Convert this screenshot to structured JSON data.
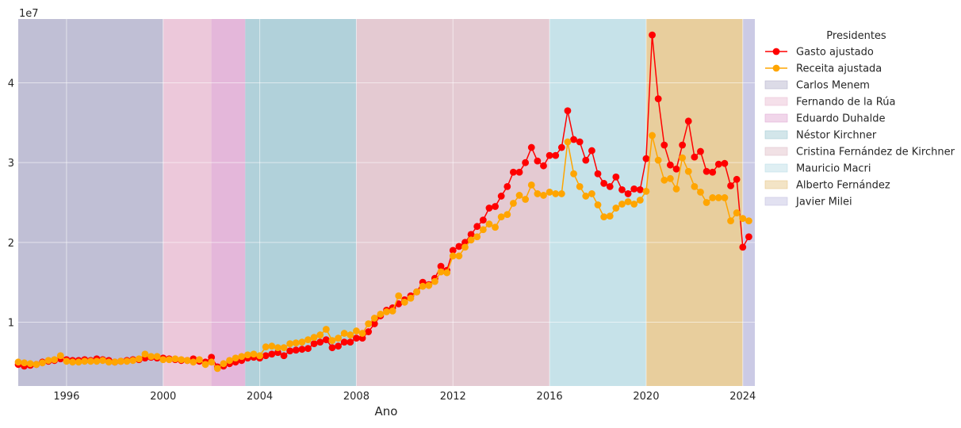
{
  "chart_data": {
    "type": "line",
    "xlabel": "Ano",
    "ylabel": "",
    "y_offset_label": "1e7",
    "xlim": [
      1994.0,
      2024.5
    ],
    "ylim": [
      2000000,
      48000000
    ],
    "x_ticks": [
      1996,
      2000,
      2004,
      2008,
      2012,
      2016,
      2020,
      2024
    ],
    "x_tick_labels": [
      "1996",
      "2000",
      "2004",
      "2008",
      "2012",
      "2016",
      "2020",
      "2024"
    ],
    "y_ticks": [
      10000000,
      20000000,
      30000000,
      40000000
    ],
    "y_tick_labels": [
      "1",
      "2",
      "3",
      "4"
    ],
    "grid": true,
    "legend": {
      "title": "Presidentes",
      "placement": "outside-right"
    },
    "periods": [
      {
        "name": "Carlos Menem",
        "start": 1994.0,
        "end": 2000.0,
        "color": "#b9b7d0"
      },
      {
        "name": "Fernando de la Rúa",
        "start": 2000.0,
        "end": 2002.0,
        "color": "#ecc2d6"
      },
      {
        "name": "Eduardo Duhalde",
        "start": 2002.0,
        "end": 2003.4,
        "color": "#e3aed6"
      },
      {
        "name": "Néstor Kirchner",
        "start": 2003.4,
        "end": 2008.0,
        "color": "#a7cdd6"
      },
      {
        "name": "Cristina Fernández de Kirchner",
        "start": 2008.0,
        "end": 2016.0,
        "color": "#e3c4cc"
      },
      {
        "name": "Mauricio Macri",
        "start": 2016.0,
        "end": 2020.0,
        "color": "#bfe0e8"
      },
      {
        "name": "Alberto Fernández",
        "start": 2020.0,
        "end": 2024.0,
        "color": "#e8c98e"
      },
      {
        "name": "Javier Milei",
        "start": 2024.0,
        "end": 2024.5,
        "color": "#c6c4e3"
      }
    ],
    "series": [
      {
        "name": "Gasto ajustado",
        "color": "#ff0000",
        "x": [
          1994.0,
          1994.25,
          1994.5,
          1994.75,
          1995.0,
          1995.25,
          1995.5,
          1995.75,
          1996.0,
          1996.25,
          1996.5,
          1996.75,
          1997.0,
          1997.25,
          1997.5,
          1997.75,
          1998.0,
          1998.25,
          1998.5,
          1998.75,
          1999.0,
          1999.25,
          1999.5,
          1999.75,
          2000.0,
          2000.25,
          2000.5,
          2000.75,
          2001.0,
          2001.25,
          2001.5,
          2001.75,
          2002.0,
          2002.25,
          2002.5,
          2002.75,
          2003.0,
          2003.25,
          2003.5,
          2003.75,
          2004.0,
          2004.25,
          2004.5,
          2004.75,
          2005.0,
          2005.25,
          2005.5,
          2005.75,
          2006.0,
          2006.25,
          2006.5,
          2006.75,
          2007.0,
          2007.25,
          2007.5,
          2007.75,
          2008.0,
          2008.25,
          2008.5,
          2008.75,
          2009.0,
          2009.25,
          2009.5,
          2009.75,
          2010.0,
          2010.25,
          2010.5,
          2010.75,
          2011.0,
          2011.25,
          2011.5,
          2011.75,
          2012.0,
          2012.25,
          2012.5,
          2012.75,
          2013.0,
          2013.25,
          2013.5,
          2013.75,
          2014.0,
          2014.25,
          2014.5,
          2014.75,
          2015.0,
          2015.25,
          2015.5,
          2015.75,
          2016.0,
          2016.25,
          2016.5,
          2016.75,
          2017.0,
          2017.25,
          2017.5,
          2017.75,
          2018.0,
          2018.25,
          2018.5,
          2018.75,
          2019.0,
          2019.25,
          2019.5,
          2019.75,
          2020.0,
          2020.25,
          2020.5,
          2020.75,
          2021.0,
          2021.25,
          2021.5,
          2021.75,
          2022.0,
          2022.25,
          2022.5,
          2022.75,
          2023.0,
          2023.25,
          2023.5,
          2023.75,
          2024.0,
          2024.25
        ],
        "values": [
          4700000,
          4500000,
          4600000,
          4700000,
          5000000,
          5100000,
          5200000,
          5400000,
          5300000,
          5200000,
          5200000,
          5300000,
          5200000,
          5400000,
          5300000,
          5200000,
          5000000,
          5100000,
          5200000,
          5300000,
          5300000,
          5500000,
          5600000,
          5500000,
          5500000,
          5400000,
          5300000,
          5200000,
          5200000,
          5400000,
          5100000,
          5000000,
          5600000,
          4400000,
          4500000,
          4800000,
          5000000,
          5200000,
          5500000,
          5600000,
          5500000,
          5800000,
          6000000,
          6200000,
          5800000,
          6400000,
          6500000,
          6600000,
          6700000,
          7300000,
          7500000,
          7800000,
          6800000,
          7000000,
          7500000,
          7500000,
          8000000,
          8000000,
          8800000,
          9800000,
          10800000,
          11500000,
          11800000,
          12300000,
          12800000,
          13300000,
          13800000,
          15000000,
          14700000,
          15500000,
          17000000,
          16500000,
          19000000,
          19500000,
          20000000,
          21000000,
          22000000,
          22800000,
          24300000,
          24500000,
          25800000,
          27000000,
          28800000,
          28800000,
          30000000,
          31900000,
          30200000,
          29600000,
          30900000,
          30900000,
          31900000,
          36500000,
          32900000,
          32600000,
          30300000,
          31500000,
          28600000,
          27400000,
          27000000,
          28200000,
          26600000,
          26100000,
          26700000,
          26600000,
          30500000,
          46000000,
          38000000,
          32200000,
          29700000,
          29200000,
          32200000,
          35200000,
          30700000,
          31400000,
          28900000,
          28800000,
          29800000,
          29900000,
          27100000,
          27900000,
          19400000,
          20700000
        ]
      },
      {
        "name": "Receita ajustada",
        "color": "#ffa500",
        "x": [
          1994.0,
          1994.25,
          1994.5,
          1994.75,
          1995.0,
          1995.25,
          1995.5,
          1995.75,
          1996.0,
          1996.25,
          1996.5,
          1996.75,
          1997.0,
          1997.25,
          1997.5,
          1997.75,
          1998.0,
          1998.25,
          1998.5,
          1998.75,
          1999.0,
          1999.25,
          1999.5,
          1999.75,
          2000.0,
          2000.25,
          2000.5,
          2000.75,
          2001.0,
          2001.25,
          2001.5,
          2001.75,
          2002.0,
          2002.25,
          2002.5,
          2002.75,
          2003.0,
          2003.25,
          2003.5,
          2003.75,
          2004.0,
          2004.25,
          2004.5,
          2004.75,
          2005.0,
          2005.25,
          2005.5,
          2005.75,
          2006.0,
          2006.25,
          2006.5,
          2006.75,
          2007.0,
          2007.25,
          2007.5,
          2007.75,
          2008.0,
          2008.25,
          2008.5,
          2008.75,
          2009.0,
          2009.25,
          2009.5,
          2009.75,
          2010.0,
          2010.25,
          2010.5,
          2010.75,
          2011.0,
          2011.25,
          2011.5,
          2011.75,
          2012.0,
          2012.25,
          2012.5,
          2012.75,
          2013.0,
          2013.25,
          2013.5,
          2013.75,
          2014.0,
          2014.25,
          2014.5,
          2014.75,
          2015.0,
          2015.25,
          2015.5,
          2015.75,
          2016.0,
          2016.25,
          2016.5,
          2016.75,
          2017.0,
          2017.25,
          2017.5,
          2017.75,
          2018.0,
          2018.25,
          2018.5,
          2018.75,
          2019.0,
          2019.25,
          2019.5,
          2019.75,
          2020.0,
          2020.25,
          2020.5,
          2020.75,
          2021.0,
          2021.25,
          2021.5,
          2021.75,
          2022.0,
          2022.25,
          2022.5,
          2022.75,
          2023.0,
          2023.25,
          2023.5,
          2023.75,
          2024.0,
          2024.25
        ],
        "values": [
          5000000,
          4900000,
          4800000,
          4700000,
          4900000,
          5200000,
          5300000,
          5800000,
          5100000,
          5000000,
          5000000,
          5100000,
          5100000,
          5100000,
          5200000,
          5000000,
          5000000,
          5100000,
          5100000,
          5200000,
          5400000,
          6000000,
          5700000,
          5700000,
          5300000,
          5300000,
          5400000,
          5300000,
          5200000,
          5000000,
          5300000,
          4700000,
          5000000,
          4200000,
          4800000,
          5200000,
          5500000,
          5700000,
          5900000,
          6000000,
          5800000,
          6900000,
          7000000,
          6800000,
          6800000,
          7300000,
          7400000,
          7500000,
          7800000,
          8100000,
          8400000,
          9100000,
          7700000,
          8000000,
          8600000,
          8400000,
          8900000,
          8600000,
          9800000,
          10500000,
          11000000,
          11300000,
          11400000,
          13300000,
          12500000,
          13000000,
          13800000,
          14500000,
          14600000,
          15100000,
          16300000,
          16200000,
          18300000,
          18300000,
          19400000,
          20300000,
          20700000,
          21600000,
          22300000,
          21900000,
          23200000,
          23500000,
          24900000,
          25900000,
          25400000,
          27200000,
          26100000,
          25900000,
          26300000,
          26100000,
          26100000,
          32600000,
          28600000,
          27000000,
          25800000,
          26100000,
          24700000,
          23200000,
          23300000,
          24300000,
          24800000,
          25100000,
          24800000,
          25300000,
          26400000,
          33400000,
          30300000,
          27800000,
          28000000,
          26700000,
          30600000,
          28900000,
          27000000,
          26300000,
          25000000,
          25600000,
          25600000,
          25600000,
          22700000,
          23700000,
          23000000,
          22700000
        ]
      }
    ]
  }
}
